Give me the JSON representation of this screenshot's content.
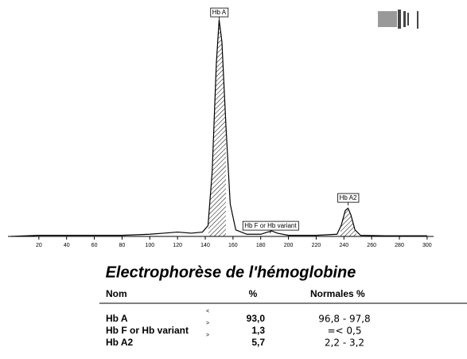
{
  "chart_data": {
    "type": "line",
    "x": [
      0,
      20,
      40,
      60,
      80,
      100,
      110,
      120,
      130,
      138,
      142,
      145,
      148,
      150,
      152,
      155,
      158,
      162,
      170,
      180,
      185,
      188,
      192,
      200,
      220,
      235,
      238,
      241,
      243,
      245,
      248,
      252,
      270,
      300
    ],
    "series": [
      {
        "color": "#000000",
        "values": [
          0,
          0.5,
          0.5,
          0.5,
          0.5,
          1,
          1.5,
          2,
          1.5,
          2,
          5,
          30,
          80,
          100,
          90,
          50,
          15,
          3,
          1,
          1,
          2,
          2.5,
          1.5,
          0.5,
          0.5,
          1,
          5,
          12,
          13,
          10,
          3,
          0.5,
          0.3,
          0.3
        ]
      }
    ],
    "xlim": [
      0,
      300
    ],
    "ylim": [
      0,
      100
    ],
    "xticks": [
      20,
      40,
      60,
      80,
      100,
      120,
      140,
      160,
      180,
      200,
      220,
      240,
      260,
      280,
      300
    ],
    "annotations": [
      {
        "text": "Hb A",
        "x": 150
      },
      {
        "text": "Hb F or Hb variant",
        "x": 187
      },
      {
        "text": "Hb A2",
        "x": 243
      }
    ]
  },
  "title": "Electrophorèse de l'hémoglobine",
  "table": {
    "columns": [
      "Nom",
      "%",
      "Normales %"
    ],
    "rows": [
      {
        "name": "Hb A",
        "flag": "<",
        "percent": "93,0",
        "normal": "96,8 - 97,8"
      },
      {
        "name": "Hb F or Hb variant",
        "flag": ">",
        "percent": "1,3",
        "normal": "=< 0,5"
      },
      {
        "name": "Hb A2",
        "flag": ">",
        "percent": "5,7",
        "normal": "2,2 - 3,2"
      }
    ]
  }
}
